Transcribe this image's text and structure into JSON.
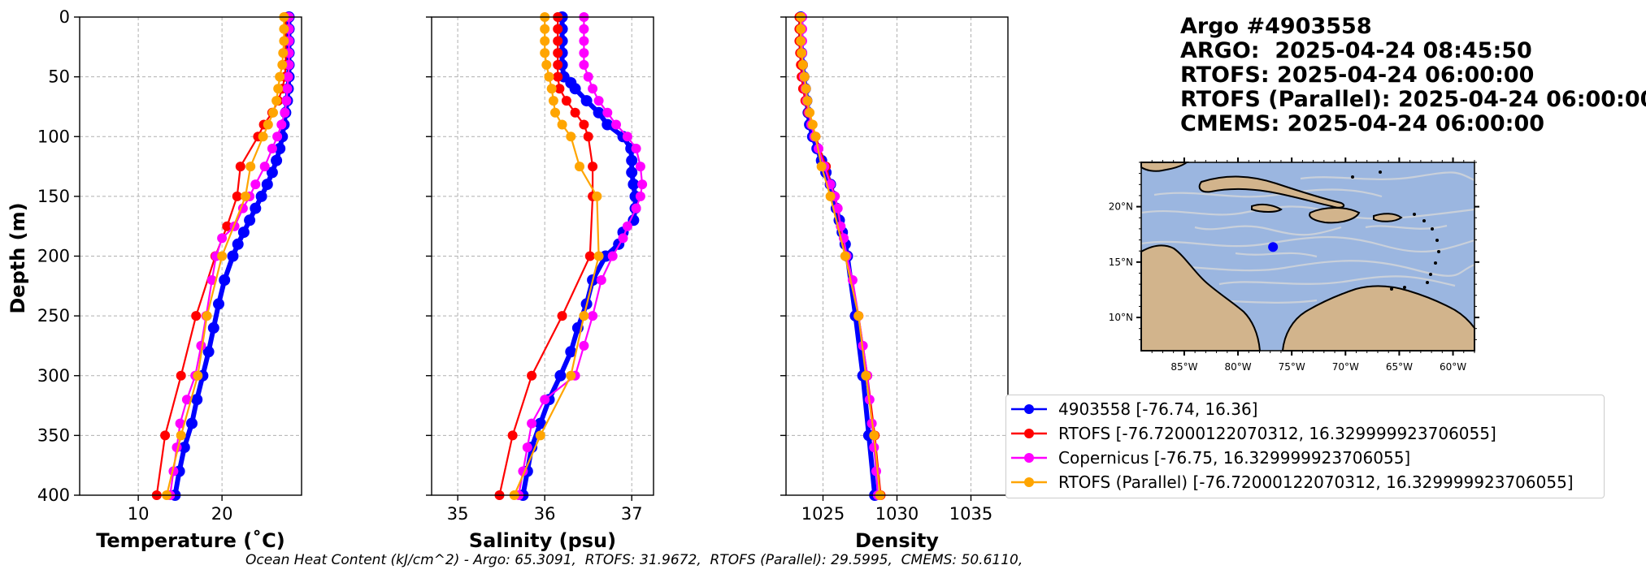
{
  "title": {
    "line1": "Argo #4903558",
    "line2": "ARGO:  2025-04-24 08:45:50",
    "line3": "RTOFS: 2025-04-24 06:00:00",
    "line4": "RTOFS (Parallel): 2025-04-24 06:00:00",
    "line5": "CMEMS: 2025-04-24 06:00:00"
  },
  "footer": "Ocean Heat Content (kJ/cm^2) - Argo: 65.3091,  RTOFS: 31.9672,  RTOFS (Parallel): 29.5995,  CMEMS: 50.6110,",
  "legend": [
    {
      "label": "4903558 [-76.74, 16.36]",
      "color": "#0000ff"
    },
    {
      "label": "RTOFS [-76.72000122070312, 16.329999923706055]",
      "color": "#ff0000"
    },
    {
      "label": "Copernicus [-76.75, 16.329999923706055]",
      "color": "#ff00ff"
    },
    {
      "label": "RTOFS (Parallel) [-76.72000122070312, 16.329999923706055]",
      "color": "#ffa500"
    }
  ],
  "map": {
    "lon_ticks": [
      "85°W",
      "80°W",
      "75°W",
      "70°W",
      "65°W",
      "60°W"
    ],
    "lat_ticks": [
      "20°N",
      "15°N",
      "10°N"
    ],
    "lon_range": [
      -89,
      -58
    ],
    "lat_range": [
      7,
      24
    ],
    "float_position": {
      "lon": -76.74,
      "lat": 16.36
    }
  },
  "chart_data": [
    {
      "type": "line",
      "xlabel": "Temperature (˚C)",
      "ylabel": "Depth (m)",
      "xlim": [
        3,
        29.5
      ],
      "ylim": [
        400,
        0
      ],
      "xticks": [
        10,
        20
      ],
      "yticks": [
        0,
        50,
        100,
        150,
        200,
        250,
        300,
        350,
        400
      ],
      "grid": true,
      "series": [
        {
          "name": "4903558 [-76.74, 16.36]",
          "color": "#0000ff",
          "depth": [
            0,
            10,
            20,
            30,
            40,
            50,
            60,
            70,
            80,
            90,
            100,
            110,
            120,
            130,
            140,
            150,
            160,
            170,
            180,
            190,
            200,
            220,
            240,
            260,
            280,
            300,
            320,
            340,
            360,
            380,
            400
          ],
          "values": [
            28.0,
            28.0,
            28.0,
            28.0,
            28.0,
            28.0,
            27.9,
            27.8,
            27.6,
            27.4,
            27.2,
            26.9,
            26.5,
            26.0,
            25.4,
            24.7,
            24.0,
            23.3,
            22.6,
            21.9,
            21.3,
            20.3,
            19.6,
            19.0,
            18.4,
            17.7,
            17.0,
            16.4,
            15.5,
            14.9,
            14.4
          ]
        },
        {
          "name": "RTOFS [-76.72000122070312, 16.329999923706055]",
          "color": "#ff0000",
          "depth": [
            0,
            10,
            20,
            30,
            40,
            50,
            60,
            70,
            80,
            90,
            100,
            125,
            150,
            175,
            200,
            250,
            300,
            350,
            400
          ],
          "values": [
            27.6,
            27.6,
            27.6,
            27.6,
            27.6,
            27.5,
            27.2,
            26.7,
            26.0,
            25.0,
            24.3,
            22.2,
            21.8,
            20.6,
            19.2,
            16.9,
            15.1,
            13.2,
            12.2
          ]
        },
        {
          "name": "Copernicus [-76.75, 16.329999923706055]",
          "color": "#ff00ff",
          "depth": [
            0,
            10,
            20,
            30,
            40,
            50,
            60,
            70,
            80,
            90,
            100,
            110,
            125,
            140,
            150,
            160,
            175,
            185,
            200,
            220,
            250,
            275,
            300,
            320,
            340,
            360,
            380,
            400
          ],
          "values": [
            28.0,
            28.0,
            28.0,
            28.0,
            28.0,
            27.9,
            27.8,
            27.7,
            27.5,
            27.1,
            26.6,
            26.0,
            25.1,
            24.0,
            23.3,
            22.5,
            21.5,
            20.0,
            19.3,
            18.8,
            18.1,
            17.5,
            16.8,
            15.8,
            15.0,
            14.6,
            14.2,
            13.8
          ]
        },
        {
          "name": "RTOFS (Parallel) [-76.72000122070312, 16.329999923706055]",
          "color": "#ffa500",
          "depth": [
            0,
            10,
            20,
            30,
            40,
            50,
            60,
            70,
            80,
            90,
            100,
            125,
            150,
            200,
            250,
            300,
            350,
            400
          ],
          "values": [
            27.4,
            27.4,
            27.4,
            27.3,
            27.2,
            26.9,
            26.7,
            26.5,
            26.1,
            25.5,
            24.9,
            23.4,
            22.8,
            20.0,
            18.2,
            17.1,
            15.1,
            13.4
          ]
        }
      ]
    },
    {
      "type": "line",
      "xlabel": "Salinity (psu)",
      "xlim": [
        34.7,
        37.25
      ],
      "ylim": [
        400,
        0
      ],
      "xticks": [
        35,
        36,
        37
      ],
      "grid": true,
      "series": [
        {
          "name": "4903558 [-76.74, 16.36]",
          "color": "#0000ff",
          "depth": [
            0,
            10,
            20,
            30,
            40,
            50,
            55,
            60,
            70,
            80,
            90,
            100,
            110,
            120,
            130,
            140,
            150,
            160,
            170,
            180,
            190,
            200,
            220,
            240,
            260,
            280,
            300,
            320,
            340,
            360,
            380,
            400
          ],
          "values": [
            36.2,
            36.2,
            36.2,
            36.2,
            36.2,
            36.22,
            36.3,
            36.35,
            36.48,
            36.62,
            36.72,
            36.9,
            36.99,
            37.0,
            37.0,
            37.02,
            37.04,
            37.04,
            37.02,
            36.9,
            36.85,
            36.7,
            36.55,
            36.48,
            36.38,
            36.3,
            36.18,
            36.05,
            35.95,
            35.85,
            35.8,
            35.75
          ]
        },
        {
          "name": "RTOFS [-76.72000122070312, 16.329999923706055]",
          "color": "#ff0000",
          "depth": [
            0,
            10,
            20,
            30,
            40,
            50,
            60,
            70,
            80,
            90,
            100,
            125,
            150,
            200,
            250,
            300,
            350,
            400
          ],
          "values": [
            36.15,
            36.15,
            36.15,
            36.15,
            36.15,
            36.15,
            36.17,
            36.25,
            36.35,
            36.45,
            36.5,
            36.55,
            36.55,
            36.52,
            36.2,
            35.85,
            35.63,
            35.48
          ]
        },
        {
          "name": "Copernicus [-76.75, 16.329999923706055]",
          "color": "#ff00ff",
          "depth": [
            0,
            10,
            20,
            30,
            40,
            50,
            60,
            70,
            80,
            90,
            100,
            110,
            125,
            140,
            150,
            160,
            175,
            185,
            200,
            220,
            250,
            275,
            300,
            320,
            340,
            360,
            380,
            400
          ],
          "values": [
            36.45,
            36.45,
            36.45,
            36.45,
            36.45,
            36.5,
            36.55,
            36.62,
            36.72,
            36.82,
            36.95,
            37.05,
            37.1,
            37.12,
            37.1,
            37.05,
            36.95,
            36.9,
            36.78,
            36.65,
            36.55,
            36.45,
            36.35,
            36.0,
            35.85,
            35.8,
            35.75,
            35.7
          ]
        },
        {
          "name": "RTOFS (Parallel) [-76.72000122070312, 16.329999923706055]",
          "color": "#ffa500",
          "depth": [
            0,
            10,
            20,
            30,
            40,
            50,
            60,
            70,
            80,
            90,
            100,
            125,
            150,
            200,
            250,
            300,
            350,
            400
          ],
          "values": [
            36.0,
            36.0,
            36.0,
            36.0,
            36.02,
            36.05,
            36.08,
            36.1,
            36.12,
            36.2,
            36.3,
            36.4,
            36.6,
            36.62,
            36.45,
            36.3,
            35.95,
            35.65
          ]
        }
      ]
    },
    {
      "type": "line",
      "xlabel": "Density",
      "xlim": [
        1022.5,
        1037.5
      ],
      "ylim": [
        400,
        0
      ],
      "xticks": [
        1025,
        1030,
        1035
      ],
      "grid": true,
      "series": [
        {
          "name": "4903558 [-76.74, 16.36]",
          "color": "#0000ff",
          "depth": [
            0,
            10,
            20,
            30,
            40,
            50,
            60,
            70,
            80,
            90,
            100,
            110,
            120,
            130,
            140,
            150,
            160,
            170,
            180,
            190,
            200,
            250,
            300,
            350,
            400
          ],
          "values": [
            1023.5,
            1023.5,
            1023.5,
            1023.55,
            1023.6,
            1023.7,
            1023.8,
            1023.9,
            1024.0,
            1024.1,
            1024.3,
            1024.6,
            1024.9,
            1025.2,
            1025.5,
            1025.7,
            1025.9,
            1026.1,
            1026.3,
            1026.5,
            1026.65,
            1027.2,
            1027.7,
            1028.1,
            1028.5
          ]
        },
        {
          "name": "RTOFS [-76.72000122070312, 16.329999923706055]",
          "color": "#ff0000",
          "depth": [
            0,
            10,
            20,
            30,
            40,
            50,
            60,
            70,
            80,
            90,
            100,
            125,
            150,
            200,
            250,
            300,
            350,
            400
          ],
          "values": [
            1023.4,
            1023.4,
            1023.4,
            1023.45,
            1023.5,
            1023.55,
            1023.65,
            1023.8,
            1024.0,
            1024.2,
            1024.5,
            1025.2,
            1025.8,
            1026.55,
            1027.4,
            1028.0,
            1028.5,
            1028.9
          ]
        },
        {
          "name": "Copernicus [-76.75, 16.329999923706055]",
          "color": "#ff00ff",
          "depth": [
            0,
            10,
            20,
            30,
            40,
            50,
            60,
            70,
            80,
            90,
            100,
            110,
            125,
            140,
            150,
            160,
            175,
            185,
            200,
            220,
            250,
            275,
            300,
            320,
            340,
            360,
            380,
            400
          ],
          "values": [
            1023.6,
            1023.6,
            1023.6,
            1023.6,
            1023.65,
            1023.7,
            1023.8,
            1023.9,
            1024.05,
            1024.2,
            1024.4,
            1024.7,
            1025.1,
            1025.5,
            1025.8,
            1026.0,
            1026.2,
            1026.4,
            1026.6,
            1027.0,
            1027.4,
            1027.7,
            1028.0,
            1028.15,
            1028.3,
            1028.45,
            1028.6,
            1028.7
          ]
        },
        {
          "name": "RTOFS (Parallel) [-76.72000122070312, 16.329999923706055]",
          "color": "#ffa500",
          "depth": [
            0,
            10,
            20,
            30,
            40,
            50,
            60,
            70,
            80,
            90,
            100,
            125,
            150,
            200,
            250,
            300,
            350,
            400
          ],
          "values": [
            1023.5,
            1023.5,
            1023.5,
            1023.55,
            1023.65,
            1023.75,
            1023.85,
            1023.95,
            1024.1,
            1024.3,
            1024.5,
            1024.9,
            1025.5,
            1026.5,
            1027.4,
            1027.9,
            1028.45,
            1028.85
          ]
        }
      ]
    }
  ]
}
